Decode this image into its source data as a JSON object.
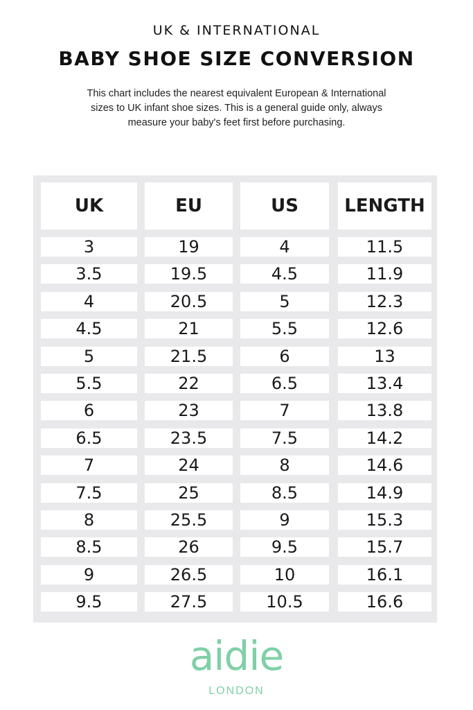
{
  "header": {
    "subtitle": "UK & INTERNATIONAL",
    "title": "BABY SHOE SIZE CONVERSION",
    "intro_lines": [
      "This chart includes the nearest equivalent European & International",
      "sizes to UK infant shoe sizes. This is a general guide only, always",
      "measure your baby's feet first before purchasing."
    ]
  },
  "table": {
    "columns": [
      "UK",
      "EU",
      "US",
      "LENGTH"
    ],
    "rows": [
      [
        "3",
        "19",
        "4",
        "11.5"
      ],
      [
        "3.5",
        "19.5",
        "4.5",
        "11.9"
      ],
      [
        "4",
        "20.5",
        "5",
        "12.3"
      ],
      [
        "4.5",
        "21",
        "5.5",
        "12.6"
      ],
      [
        "5",
        "21.5",
        "6",
        "13"
      ],
      [
        "5.5",
        "22",
        "6.5",
        "13.4"
      ],
      [
        "6",
        "23",
        "7",
        "13.8"
      ],
      [
        "6.5",
        "23.5",
        "7.5",
        "14.2"
      ],
      [
        "7",
        "24",
        "8",
        "14.6"
      ],
      [
        "7.5",
        "25",
        "8.5",
        "14.9"
      ],
      [
        "8",
        "25.5",
        "9",
        "15.3"
      ],
      [
        "8.5",
        "26",
        "9.5",
        "15.7"
      ],
      [
        "9",
        "26.5",
        "10",
        "16.1"
      ],
      [
        "9.5",
        "27.5",
        "10.5",
        "16.6"
      ]
    ]
  },
  "brand": {
    "logo_text": "aidie",
    "logo_sub": "LONDON",
    "color": "#7fd0a6"
  }
}
